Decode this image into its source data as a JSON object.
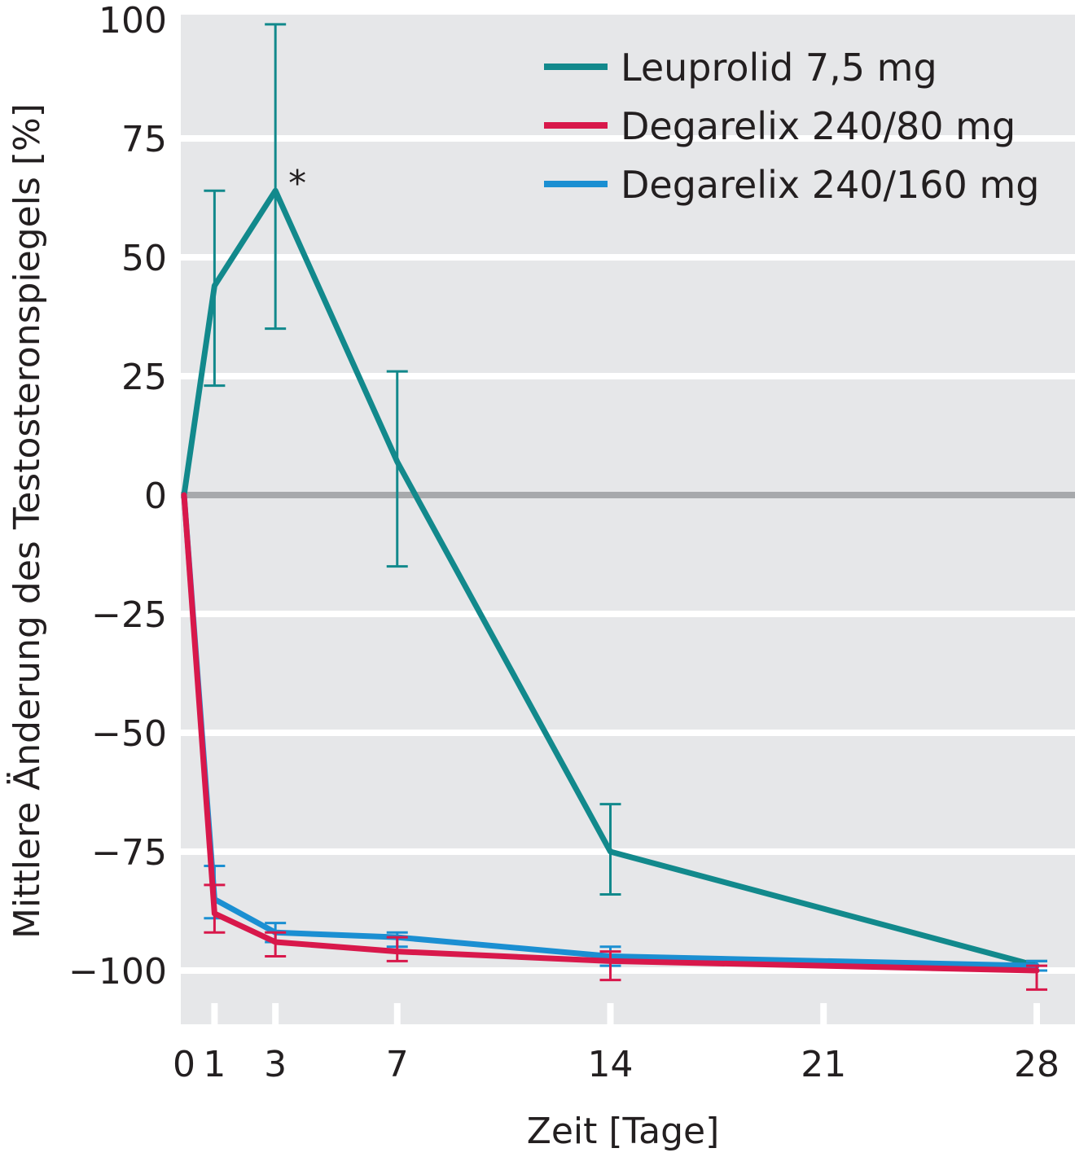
{
  "chart_data": {
    "type": "line",
    "xlabel": "Zeit [Tage]",
    "ylabel": "Mittlere Änderung des Testosteronspiegels [%]",
    "xlim": [
      0,
      29
    ],
    "ylim": [
      -110,
      100
    ],
    "x_ticks": [
      0,
      1,
      3,
      7,
      14,
      21,
      28
    ],
    "y_ticks": [
      {
        "value": 100,
        "label": "100"
      },
      {
        "value": 75,
        "label": "75"
      },
      {
        "value": 50,
        "label": "50"
      },
      {
        "value": 25,
        "label": "25"
      },
      {
        "value": 0,
        "label": "0"
      },
      {
        "value": -25,
        "label": "−25"
      },
      {
        "value": -50,
        "label": "−50"
      },
      {
        "value": -75,
        "label": "−75"
      },
      {
        "value": -100,
        "label": "−100"
      }
    ],
    "grid": true,
    "legend_position": "top-right",
    "background_color": "#e6e7e9",
    "zero_line_color": "#a7a9ac",
    "series": [
      {
        "name": "Leuprolid 7,5 mg",
        "color": "#12898c",
        "x": [
          0,
          1,
          3,
          7,
          14,
          28
        ],
        "y": [
          0,
          44,
          64,
          7,
          -75,
          -99
        ],
        "err_low": [
          null,
          23,
          35,
          -15,
          -84,
          -98
        ],
        "err_high": [
          null,
          64,
          99,
          26,
          -65,
          -98
        ]
      },
      {
        "name": "Degarelix 240/80 mg",
        "color": "#d8184b",
        "x": [
          0,
          1,
          3,
          7,
          14,
          28
        ],
        "y": [
          0,
          -88,
          -94,
          -96,
          -98,
          -100
        ],
        "err_low": [
          null,
          -92,
          -97,
          -98,
          -102,
          -104
        ],
        "err_high": [
          null,
          -82,
          -92,
          -93,
          -96,
          -99
        ]
      },
      {
        "name": "Degarelix 240/160 mg",
        "color": "#1b8fd2",
        "x": [
          0,
          1,
          3,
          7,
          14,
          28
        ],
        "y": [
          0,
          -85,
          -92,
          -93,
          -97,
          -99
        ],
        "err_low": [
          null,
          -89,
          -94,
          -95,
          -99,
          -100
        ],
        "err_high": [
          null,
          -78,
          -90,
          -92,
          -95,
          -98
        ]
      }
    ],
    "annotations": [
      {
        "text": "*",
        "x": 3,
        "y": 64
      }
    ]
  }
}
